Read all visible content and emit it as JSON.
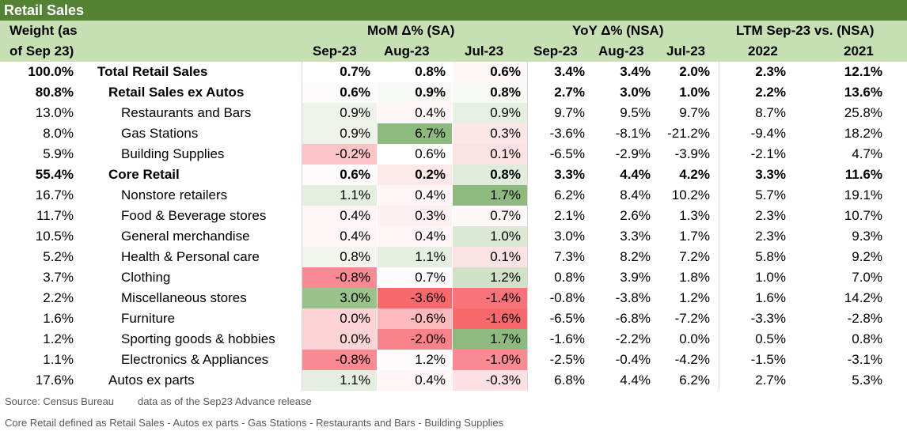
{
  "title": "Retail Sales",
  "header": {
    "weight_line1": "Weight (as",
    "weight_line2": "of Sep 23)",
    "mom": "MoM Δ% (SA)",
    "yoy": "YoY Δ% (NSA)",
    "ltm": "LTM Sep-23 vs. (NSA)",
    "cols": [
      "Sep-23",
      "Aug-23",
      "Jul-23",
      "Sep-23",
      "Aug-23",
      "Jul-23",
      "2022",
      "2021"
    ]
  },
  "rows": [
    {
      "weight": "100.0%",
      "name": "Total Retail Sales",
      "bold": true,
      "indent": 0,
      "mom": [
        "0.7%",
        "0.8%",
        "0.6%"
      ],
      "mom_color": [
        "#ffffff",
        "#ffffff",
        "#fef7f8"
      ],
      "yoy": [
        "3.4%",
        "3.4%",
        "2.0%"
      ],
      "ltm": [
        "2.3%",
        "12.1%"
      ]
    },
    {
      "weight": "80.8%",
      "name": "Retail Sales ex Autos",
      "bold": true,
      "indent": 1,
      "mom": [
        "0.6%",
        "0.9%",
        "0.8%"
      ],
      "mom_color": [
        "#fdfbfb",
        "#f7f9f5",
        "#f6f9f4"
      ],
      "yoy": [
        "2.7%",
        "3.0%",
        "1.0%"
      ],
      "ltm": [
        "2.2%",
        "13.6%"
      ]
    },
    {
      "weight": "13.0%",
      "name": "Restaurants and Bars",
      "bold": false,
      "indent": 2,
      "mom": [
        "0.9%",
        "0.4%",
        "0.9%"
      ],
      "mom_color": [
        "#eef3ea",
        "#fdf5f6",
        "#e7efe2"
      ],
      "yoy": [
        "9.7%",
        "9.5%",
        "9.7%"
      ],
      "ltm": [
        "8.7%",
        "25.8%"
      ]
    },
    {
      "weight": "8.0%",
      "name": "Gas Stations",
      "bold": false,
      "indent": 2,
      "mom": [
        "0.9%",
        "6.7%",
        "0.3%"
      ],
      "mom_color": [
        "#eef3ea",
        "#8fba7f",
        "#fde6e8"
      ],
      "yoy": [
        "-3.6%",
        "-8.1%",
        "-21.2%"
      ],
      "ltm": [
        "-9.4%",
        "18.2%"
      ]
    },
    {
      "weight": "5.9%",
      "name": "Building Supplies",
      "bold": false,
      "indent": 2,
      "mom": [
        "-0.2%",
        "0.6%",
        "0.1%"
      ],
      "mom_color": [
        "#fcc3c8",
        "#ffffff",
        "#fde2e5"
      ],
      "yoy": [
        "-6.5%",
        "-2.9%",
        "-3.9%"
      ],
      "ltm": [
        "-2.1%",
        "4.7%"
      ]
    },
    {
      "weight": "55.4%",
      "name": "Core Retail",
      "bold": true,
      "indent": 1,
      "mom": [
        "0.6%",
        "0.2%",
        "0.8%"
      ],
      "mom_color": [
        "#fdfbfb",
        "#fde8ea",
        "#e2ecdd"
      ],
      "yoy": [
        "3.3%",
        "4.4%",
        "4.2%"
      ],
      "ltm": [
        "3.3%",
        "11.6%"
      ]
    },
    {
      "weight": "16.7%",
      "name": "Nonstore retailers",
      "bold": false,
      "indent": 2,
      "mom": [
        "1.1%",
        "0.4%",
        "1.7%"
      ],
      "mom_color": [
        "#e6eee1",
        "#fdf5f6",
        "#8fba7f"
      ],
      "yoy": [
        "6.2%",
        "8.4%",
        "10.2%"
      ],
      "ltm": [
        "5.7%",
        "19.1%"
      ]
    },
    {
      "weight": "11.7%",
      "name": "Food & Beverage stores",
      "bold": false,
      "indent": 2,
      "mom": [
        "0.4%",
        "0.3%",
        "0.7%"
      ],
      "mom_color": [
        "#fdf5f6",
        "#fdf0f2",
        "#fdf7f8"
      ],
      "yoy": [
        "2.1%",
        "2.6%",
        "1.3%"
      ],
      "ltm": [
        "2.3%",
        "10.7%"
      ]
    },
    {
      "weight": "10.5%",
      "name": "General merchandise",
      "bold": false,
      "indent": 2,
      "mom": [
        "0.4%",
        "0.4%",
        "1.0%"
      ],
      "mom_color": [
        "#fdf5f6",
        "#fdf5f6",
        "#dbe8d4"
      ],
      "yoy": [
        "3.0%",
        "3.3%",
        "1.7%"
      ],
      "ltm": [
        "2.3%",
        "9.3%"
      ]
    },
    {
      "weight": "5.2%",
      "name": "Health & Personal care",
      "bold": false,
      "indent": 2,
      "mom": [
        "0.8%",
        "1.1%",
        "0.1%"
      ],
      "mom_color": [
        "#f1f5ee",
        "#e6eee1",
        "#fde2e5"
      ],
      "yoy": [
        "7.3%",
        "8.2%",
        "7.2%"
      ],
      "ltm": [
        "5.8%",
        "9.2%"
      ]
    },
    {
      "weight": "3.7%",
      "name": "Clothing",
      "bold": false,
      "indent": 2,
      "mom": [
        "-0.8%",
        "0.7%",
        "1.2%"
      ],
      "mom_color": [
        "#f98a93",
        "#fdfbfb",
        "#cfe1c6"
      ],
      "yoy": [
        "0.8%",
        "3.9%",
        "1.8%"
      ],
      "ltm": [
        "1.0%",
        "7.0%"
      ]
    },
    {
      "weight": "2.2%",
      "name": "Miscellaneous stores",
      "bold": false,
      "indent": 2,
      "mom": [
        "3.0%",
        "-3.6%",
        "-1.4%"
      ],
      "mom_color": [
        "#9cc28c",
        "#f8696b",
        "#f8747a"
      ],
      "yoy": [
        "-0.8%",
        "-3.8%",
        "1.2%"
      ],
      "ltm": [
        "1.6%",
        "14.2%"
      ]
    },
    {
      "weight": "1.6%",
      "name": "Furniture",
      "bold": false,
      "indent": 2,
      "mom": [
        "0.0%",
        "-0.6%",
        "-1.6%"
      ],
      "mom_color": [
        "#fdd3d6",
        "#fbb8bd",
        "#f8696b"
      ],
      "yoy": [
        "-6.5%",
        "-6.8%",
        "-7.2%"
      ],
      "ltm": [
        "-3.3%",
        "-2.8%"
      ]
    },
    {
      "weight": "1.2%",
      "name": "Sporting goods & hobbies",
      "bold": false,
      "indent": 2,
      "mom": [
        "0.0%",
        "-2.0%",
        "1.7%"
      ],
      "mom_color": [
        "#fdd3d6",
        "#f98189",
        "#8fba7f"
      ],
      "yoy": [
        "-1.6%",
        "-2.2%",
        "0.0%"
      ],
      "ltm": [
        "0.5%",
        "0.8%"
      ]
    },
    {
      "weight": "1.1%",
      "name": "Electronics & Appliances",
      "bold": false,
      "indent": 2,
      "mom": [
        "-0.8%",
        "1.2%",
        "-1.0%"
      ],
      "mom_color": [
        "#f98a93",
        "#fdfbfb",
        "#f98a93"
      ],
      "yoy": [
        "-2.5%",
        "-0.4%",
        "-4.2%"
      ],
      "ltm": [
        "-1.5%",
        "-3.1%"
      ]
    },
    {
      "weight": "17.6%",
      "name": "Autos ex parts",
      "bold": false,
      "indent": 1,
      "mom": [
        "1.1%",
        "0.4%",
        "-0.3%"
      ],
      "mom_color": [
        "#e6eee1",
        "#fdf5f6",
        "#fde0e3"
      ],
      "yoy": [
        "6.8%",
        "4.4%",
        "6.2%"
      ],
      "ltm": [
        "2.7%",
        "5.3%"
      ]
    }
  ],
  "footer": {
    "source": "Source: Census Bureau",
    "note": "data as of the Sep23 Advance release",
    "definition": "Core Retail defined as Retail Sales - Autos ex parts - Gas Stations - Restaurants and Bars - Building Supplies"
  }
}
